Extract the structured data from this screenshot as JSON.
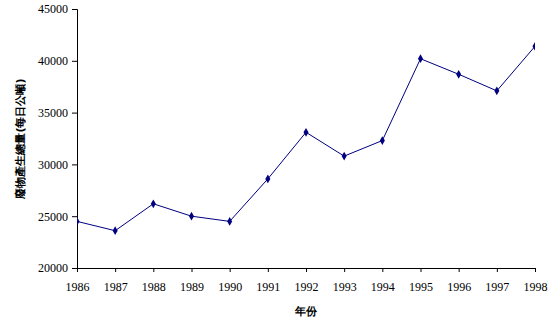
{
  "chart_data": {
    "type": "line",
    "x_label": "年份",
    "y_label": "廢物產生總量(每日公噸)",
    "x": [
      1986,
      1987,
      1988,
      1989,
      1990,
      1991,
      1992,
      1993,
      1994,
      1995,
      1996,
      1997,
      1998
    ],
    "values": [
      24500,
      23600,
      26200,
      25000,
      24500,
      28600,
      33100,
      30800,
      32300,
      40200,
      38700,
      37100,
      41400
    ],
    "color": "#000080",
    "marker": "diamond",
    "xlim": [
      1986,
      1998
    ],
    "xticks": [
      1986,
      1987,
      1988,
      1989,
      1990,
      1991,
      1992,
      1993,
      1994,
      1995,
      1996,
      1997,
      1998
    ],
    "ylim": [
      20000,
      45000
    ],
    "yticks": [
      20000,
      25000,
      30000,
      35000,
      40000,
      45000
    ],
    "grid": false
  }
}
